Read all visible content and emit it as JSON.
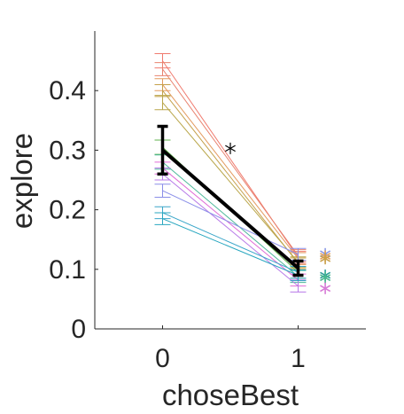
{
  "chart_data": {
    "type": "line",
    "xlabel": "choseBest",
    "ylabel": "explore",
    "x": [
      0,
      1
    ],
    "xlim": [
      -0.5,
      1.5
    ],
    "ylim": [
      0,
      0.5
    ],
    "xticks": [
      0,
      1
    ],
    "xtick_labels": [
      "0",
      "1"
    ],
    "yticks": [
      0,
      0.1,
      0.2,
      0.3,
      0.4
    ],
    "ytick_labels": [
      "0",
      "0.1",
      "0.2",
      "0.3",
      "0.4"
    ],
    "grid": false,
    "series": [
      {
        "color": "#f07a6e",
        "y": [
          0.45,
          0.12
        ],
        "err": [
          0.012,
          0.01
        ]
      },
      {
        "color": "#e8826e",
        "y": [
          0.436,
          0.123
        ],
        "err": [
          0.011,
          0.01
        ]
      },
      {
        "color": "#e39a5e",
        "y": [
          0.41,
          0.118
        ],
        "err": [
          0.01,
          0.01
        ]
      },
      {
        "color": "#c4a04a",
        "y": [
          0.4,
          0.11
        ],
        "err": [
          0.01,
          0.009
        ]
      },
      {
        "color": "#b9a64a",
        "y": [
          0.38,
          0.112
        ],
        "err": [
          0.012,
          0.009
        ]
      },
      {
        "color": "#5fb04c",
        "y": [
          0.305,
          0.095
        ],
        "err": [
          0.012,
          0.01
        ]
      },
      {
        "color": "#4db89a",
        "y": [
          0.28,
          0.088
        ],
        "err": [
          0.012,
          0.01
        ]
      },
      {
        "color": "#e06bd6",
        "y": [
          0.27,
          0.082
        ],
        "err": [
          0.01,
          0.01
        ]
      },
      {
        "color": "#b87ae8",
        "y": [
          0.26,
          0.072
        ],
        "err": [
          0.01,
          0.01
        ]
      },
      {
        "color": "#8a8ee8",
        "y": [
          0.232,
          0.125
        ],
        "err": [
          0.011,
          0.01
        ]
      },
      {
        "color": "#3aa6c9",
        "y": [
          0.195,
          0.095
        ],
        "err": [
          0.01,
          0.01
        ]
      },
      {
        "color": "#27a6bf",
        "y": [
          0.185,
          0.09
        ],
        "err": [
          0.01,
          0.009
        ]
      }
    ],
    "mean": {
      "color": "#000000",
      "y": [
        0.3,
        0.102
      ],
      "err": [
        0.04,
        0.012
      ]
    },
    "side_markers": [
      {
        "color": "#8a9ae8",
        "y": 0.126
      },
      {
        "color": "#e6a05a",
        "y": 0.122
      },
      {
        "color": "#c9a04a",
        "y": 0.118
      },
      {
        "color": "#2e9e9a",
        "y": 0.09
      },
      {
        "color": "#49b88e",
        "y": 0.086
      },
      {
        "color": "#d77ad6",
        "y": 0.068
      }
    ],
    "significance_marker": {
      "symbol": "*",
      "x": 0.5,
      "y": 0.303
    }
  }
}
